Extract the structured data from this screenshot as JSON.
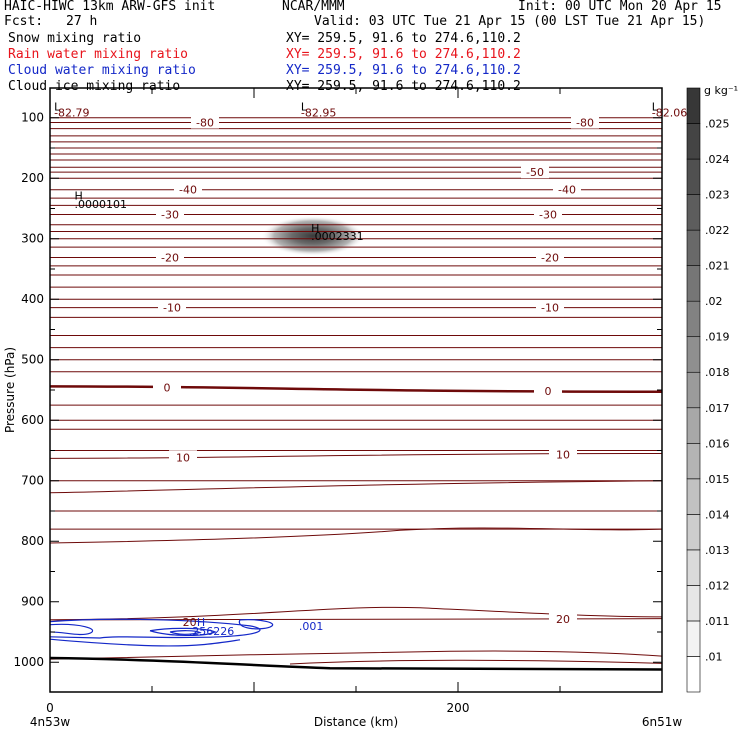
{
  "header": {
    "model": "HAIC-HIWC 13km ARW-GFS init",
    "org": "NCAR/MMM",
    "init": "Init: 00 UTC Mon 20 Apr 15",
    "fcst_label": "Fcst:",
    "fcst_value": "27 h",
    "valid": "Valid: 03 UTC Tue 21 Apr 15 (00 LST Tue 21 Apr 15)",
    "fields": [
      {
        "name": "Snow mixing ratio",
        "xy": "XY= 259.5, 91.6 to 274.6,110.2",
        "color": "#000000"
      },
      {
        "name": "Rain water mixing ratio",
        "xy": "XY= 259.5, 91.6 to 274.6,110.2",
        "color": "#e8141c"
      },
      {
        "name": "Cloud water mixing ratio",
        "xy": "XY= 259.5, 91.6 to 274.6,110.2",
        "color": "#1428c8"
      },
      {
        "name": "Cloud ice mixing ratio",
        "xy": "XY= 259.5, 91.6 to 274.6,110.2",
        "color": "#000000"
      }
    ]
  },
  "chart_data": {
    "type": "contour",
    "xlabel": "Distance (km)",
    "ylabel": "Pressure (hPa)",
    "xlim": [
      0,
      300
    ],
    "ylim": [
      1050,
      50
    ],
    "x_ticks": [
      "0",
      "200"
    ],
    "y_ticks": [
      "100",
      "200",
      "300",
      "400",
      "500",
      "600",
      "700",
      "800",
      "900",
      "1000"
    ],
    "x_endpoints": {
      "left": "4n53w",
      "right": "6n51w"
    },
    "colorbar": {
      "units": "g kg⁻¹",
      "levels": [
        ".01",
        ".011",
        ".012",
        ".013",
        ".014",
        ".015",
        ".016",
        ".017",
        ".018",
        ".019",
        ".02",
        ".021",
        ".022",
        ".023",
        ".024",
        ".025"
      ]
    },
    "temperature_isotherms": [
      {
        "label": "-80",
        "y": [
          108,
          108
        ]
      },
      {
        "label": "-50",
        "y": [
          190,
          190
        ]
      },
      {
        "label": "-40",
        "y": [
          219,
          219
        ]
      },
      {
        "label": "-30",
        "y": [
          260,
          260
        ]
      },
      {
        "label": "-20",
        "y": [
          331,
          331
        ]
      },
      {
        "label": "-10",
        "y": [
          414,
          414
        ]
      },
      {
        "label": "0",
        "y": [
          544,
          553
        ]
      },
      {
        "label": "10",
        "y": [
          663,
          655
        ]
      },
      {
        "label": "20",
        "y": [
          930,
          928
        ]
      }
    ],
    "annotations": [
      {
        "text": "L",
        "x": 2,
        "p": 88,
        "color": "#000000"
      },
      {
        "text": "-82.79",
        "x": 2,
        "p": 98,
        "color": "#6e0a0a"
      },
      {
        "text": "L",
        "x": 123,
        "p": 88,
        "color": "#000000"
      },
      {
        "text": "-82.95",
        "x": 123,
        "p": 98,
        "color": "#6e0a0a"
      },
      {
        "text": "L",
        "x": 295,
        "p": 88,
        "color": "#000000"
      },
      {
        "text": "-82.06",
        "x": 295,
        "p": 98,
        "color": "#6e0a0a"
      },
      {
        "text": "H",
        "x": 12,
        "p": 235,
        "color": "#000000"
      },
      {
        "text": ".0000101",
        "x": 12,
        "p": 249,
        "color": "#000000"
      },
      {
        "text": "H",
        "x": 128,
        "p": 289,
        "color": "#000000"
      },
      {
        "text": ".0002331",
        "x": 128,
        "p": 302,
        "color": "#000000"
      },
      {
        "text": "H",
        "x": 72,
        "p": 940,
        "color": "#1428c8"
      },
      {
        "text": ".256226",
        "x": 68,
        "p": 955,
        "color": "#1428c8"
      },
      {
        "text": ".001",
        "x": 122,
        "p": 947,
        "color": "#1428c8"
      },
      {
        "text": "20",
        "x": 65,
        "p": 940,
        "color": "#6e0a0a"
      }
    ]
  }
}
